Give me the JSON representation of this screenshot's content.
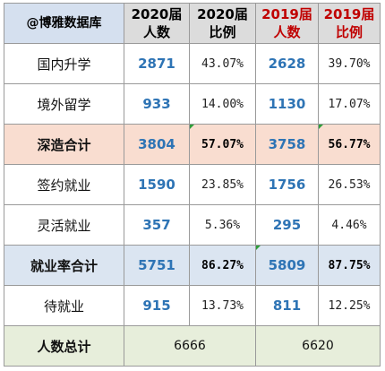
{
  "header": {
    "brand": "@博雅数据库",
    "col_2020_count": "2020届\n人数",
    "col_2020_ratio": "2020届\n比例",
    "col_2019_count": "2019届\n人数",
    "col_2019_ratio": "2019届\n比例"
  },
  "rows": [
    {
      "label": "国内升学",
      "c2020": "2871",
      "r2020": "43.07%",
      "c2019": "2628",
      "r2019": "39.70%"
    },
    {
      "label": "境外留学",
      "c2020": "933",
      "r2020": "14.00%",
      "c2019": "1130",
      "r2019": "17.07%"
    },
    {
      "label": "深造合计",
      "c2020": "3804",
      "r2020": "57.07%",
      "c2019": "3758",
      "r2019": "56.77%"
    },
    {
      "label": "签约就业",
      "c2020": "1590",
      "r2020": "23.85%",
      "c2019": "1756",
      "r2019": "26.53%"
    },
    {
      "label": "灵活就业",
      "c2020": "357",
      "r2020": "5.36%",
      "c2019": "295",
      "r2019": "4.46%"
    },
    {
      "label": "就业率合计",
      "c2020": "5751",
      "r2020": "86.27%",
      "c2019": "5809",
      "r2019": "87.75%"
    },
    {
      "label": "待就业",
      "c2020": "915",
      "r2020": "13.73%",
      "c2019": "811",
      "r2019": "12.25%"
    }
  ],
  "total": {
    "label": "人数总计",
    "t2020": "6666",
    "t2019": "6620"
  },
  "colors": {
    "count_blue": "#2e74b5",
    "year2019_red": "#c00000",
    "deep_bg": "#f9ddd0",
    "emp_bg": "#dbe5f1",
    "total_bg": "#e7eedb"
  }
}
